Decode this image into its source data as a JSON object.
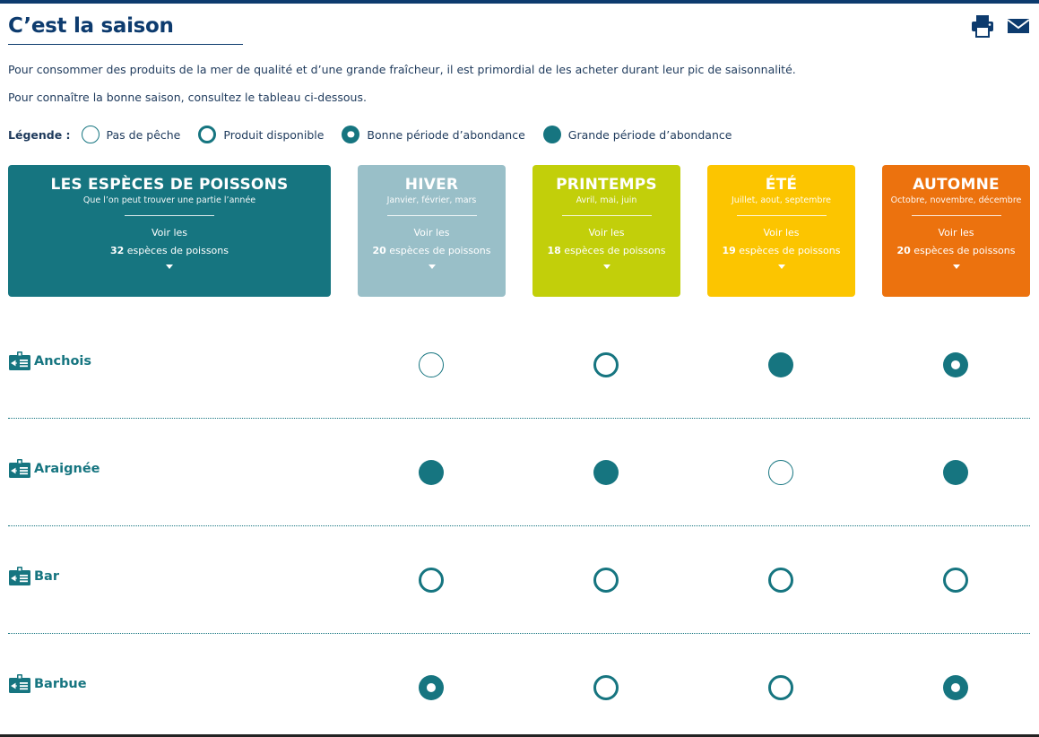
{
  "page": {
    "title": "C’est la saison"
  },
  "toolbar": {
    "print_icon": "print-icon",
    "mail_icon": "mail-icon"
  },
  "intro": {
    "line1": "Pour consommer des produits de la mer de qualité et d’une grande fraîcheur, il est primordial de les acheter durant leur pic de saisonnalité.",
    "line2": "Pour connaître la bonne saison, consultez le tableau ci-dessous."
  },
  "legend": {
    "title": "Légende :",
    "items": [
      {
        "status": "none",
        "label": "Pas de pêche"
      },
      {
        "status": "avail",
        "label": "Produit disponible"
      },
      {
        "status": "good",
        "label": "Bonne période d’abondance"
      },
      {
        "status": "great",
        "label": "Grande période d’abondance"
      }
    ]
  },
  "colors": {
    "teal": "#167580",
    "navy": "#0d3b6e",
    "hiver": "#99bfc8",
    "printemps": "#c2cf0a",
    "ete": "#fcc500",
    "automne": "#ec720e"
  },
  "cards": [
    {
      "id": "especes",
      "title": "LES ESPÈCES DE POISSONS",
      "subtitle": "Que l’on peut trouver une partie l’année",
      "voir": "Voir les",
      "count": "32",
      "count_suffix": " espèces de poissons",
      "color": "#167580"
    },
    {
      "id": "hiver",
      "title": "HIVER",
      "subtitle": "Janvier, février, mars",
      "voir": "Voir les",
      "count": "20",
      "count_suffix": " espèces de poissons",
      "color": "#99bfc8"
    },
    {
      "id": "printemps",
      "title": "PRINTEMPS",
      "subtitle": "Avril, mai, juin",
      "voir": "Voir les",
      "count": "18",
      "count_suffix": " espèces de poissons",
      "color": "#c2cf0a"
    },
    {
      "id": "ete",
      "title": "ÉTÉ",
      "subtitle": "Juillet, aout, septembre",
      "voir": "Voir les",
      "count": "19",
      "count_suffix": " espèces de poissons",
      "color": "#fcc500"
    },
    {
      "id": "automne",
      "title": "AUTOMNE",
      "subtitle": "Octobre, novembre, décembre",
      "voir": "Voir les",
      "count": "20",
      "count_suffix": " espèces de poissons",
      "color": "#ec720e"
    }
  ],
  "species": [
    {
      "name": "Anchois",
      "seasons": [
        "none",
        "avail",
        "great",
        "good"
      ]
    },
    {
      "name": "Araignée",
      "seasons": [
        "great",
        "great",
        "none",
        "great"
      ]
    },
    {
      "name": "Bar",
      "seasons": [
        "avail",
        "avail",
        "avail",
        "avail"
      ]
    },
    {
      "name": "Barbue",
      "seasons": [
        "good",
        "avail",
        "avail",
        "good"
      ]
    }
  ]
}
